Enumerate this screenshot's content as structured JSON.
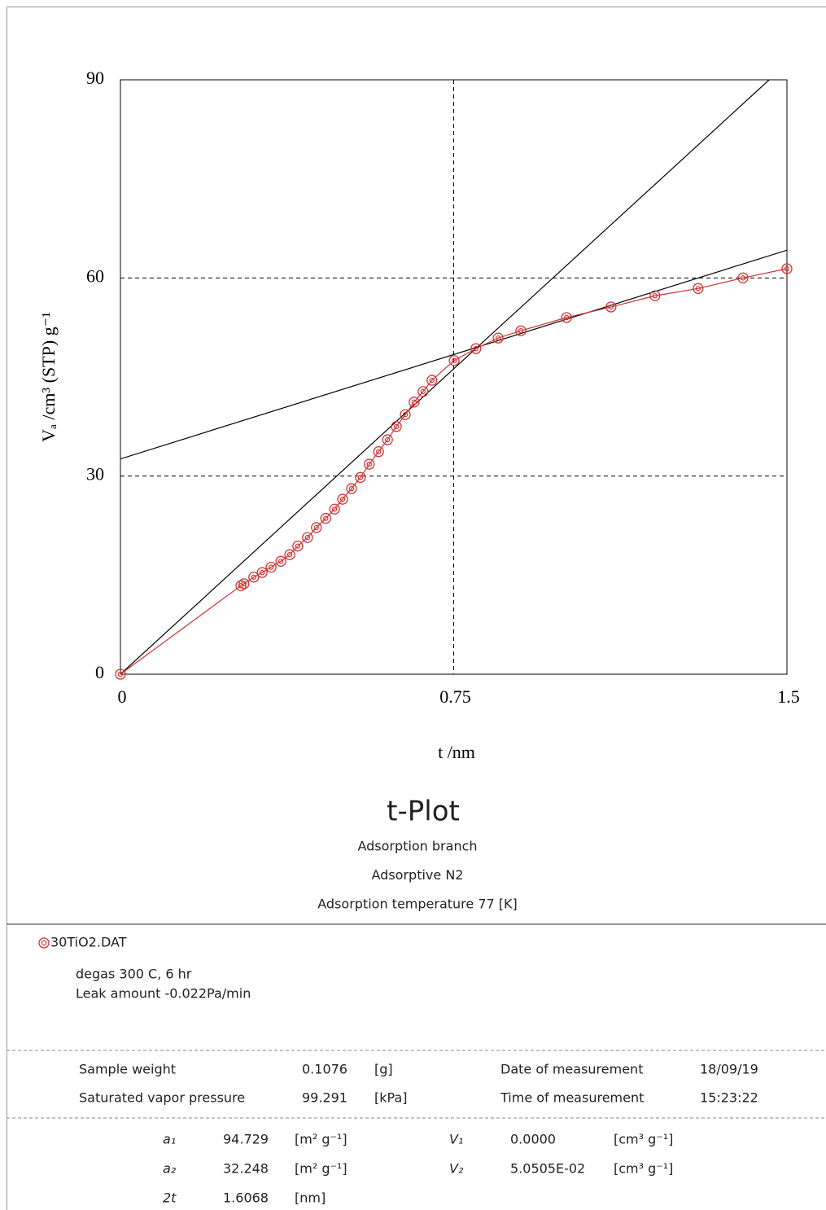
{
  "chart_data": {
    "type": "line",
    "title": "t-Plot",
    "subtitles": [
      "Adsorption branch",
      "Adsorptive N2",
      "Adsorption temperature 77 [K]"
    ],
    "xlabel": "t /nm",
    "ylabel": "Vₐ /cm³ (STP) g⁻¹",
    "x": [
      0,
      0.271,
      0.278,
      0.3,
      0.319,
      0.339,
      0.361,
      0.381,
      0.399,
      0.421,
      0.441,
      0.462,
      0.482,
      0.5,
      0.52,
      0.54,
      0.56,
      0.581,
      0.601,
      0.621,
      0.641,
      0.661,
      0.681,
      0.701,
      0.751,
      0.8,
      0.85,
      0.901,
      1.004,
      1.104,
      1.203,
      1.3,
      1.401,
      1.5
    ],
    "series": [
      {
        "name": "30TiO2.DAT",
        "color": "#cc3333",
        "values": [
          0,
          13.4,
          13.7,
          14.7,
          15.4,
          16.2,
          17.1,
          18.1,
          19.4,
          20.7,
          22.2,
          23.6,
          25.0,
          26.5,
          28.1,
          29.8,
          31.8,
          33.7,
          35.5,
          37.5,
          39.3,
          41.2,
          42.8,
          44.5,
          47.5,
          49.3,
          50.9,
          52.0,
          54.0,
          55.6,
          57.3,
          58.4,
          60.0,
          61.4
        ]
      }
    ],
    "fit_lines": [
      {
        "color": "#000000",
        "x": [
          0,
          1.46
        ],
        "values": [
          0,
          90
        ]
      },
      {
        "color": "#000000",
        "x": [
          0,
          1.5
        ],
        "values": [
          32.6,
          64.2
        ]
      }
    ],
    "xlim": [
      0,
      1.5
    ],
    "xticks": [
      0,
      0.75,
      1.5
    ],
    "ylim": [
      0,
      90
    ],
    "yticks": [
      0,
      30,
      60,
      90
    ],
    "grid": true
  },
  "report": {
    "conditions": [
      "degas 300 C, 6 hr",
      "Leak amount -0.022Pa/min"
    ],
    "sample_rows": [
      [
        "Sample weight",
        "0.1076",
        "[g]",
        "Date of measurement",
        "18/09/19"
      ],
      [
        "Saturated vapor pressure",
        "99.291",
        "[kPa]",
        "Time of measurement",
        "15:23:22"
      ]
    ],
    "result_rows": [
      [
        "a₁",
        "94.729",
        "[m² g⁻¹]",
        "V₁",
        "0.0000",
        "[cm³ g⁻¹]"
      ],
      [
        "a₂",
        "32.248",
        "[m² g⁻¹]",
        "V₂",
        "5.0505E-02",
        "[cm³ g⁻¹]"
      ],
      [
        "2t",
        "1.6068",
        "[nm]"
      ]
    ]
  }
}
